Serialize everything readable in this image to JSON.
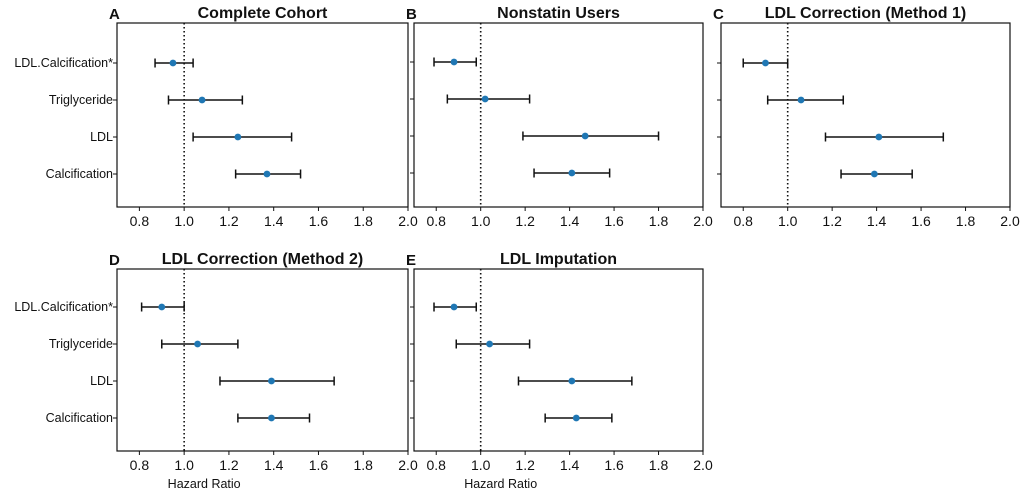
{
  "chart_data": [
    {
      "type": "forest",
      "letter": "A",
      "title": "Complete Cohort",
      "categories": [
        "LDL.Calcification*",
        "Triglyceride",
        "LDL",
        "Calcification"
      ],
      "show_category_labels": true,
      "estimate": [
        0.95,
        1.08,
        1.24,
        1.37
      ],
      "ci_low": [
        0.87,
        0.93,
        1.04,
        1.23
      ],
      "ci_high": [
        1.04,
        1.26,
        1.48,
        1.52
      ],
      "xlim": [
        0.7,
        2.0
      ],
      "xticks": [
        "0.8",
        "1.0",
        "1.2",
        "1.4",
        "1.6",
        "1.8",
        "2.0"
      ],
      "reference_line": 1.0,
      "xlabel": ""
    },
    {
      "type": "forest",
      "letter": "B",
      "title": "Nonstatin Users",
      "categories": [
        "LDL.Calcification*",
        "Triglyceride",
        "LDL",
        "Calcification"
      ],
      "show_category_labels": false,
      "estimate": [
        0.88,
        1.02,
        1.47,
        1.41
      ],
      "ci_low": [
        0.79,
        0.85,
        1.19,
        1.24
      ],
      "ci_high": [
        0.98,
        1.22,
        1.8,
        1.58
      ],
      "xlim": [
        0.7,
        2.0
      ],
      "xticks": [
        "0.8",
        "1.0",
        "1.2",
        "1.4",
        "1.6",
        "1.8",
        "2.0"
      ],
      "reference_line": 1.0,
      "xlabel": ""
    },
    {
      "type": "forest",
      "letter": "C",
      "title": "LDL Correction (Method 1)",
      "categories": [
        "LDL.Calcification*",
        "Triglyceride",
        "LDL",
        "Calcification"
      ],
      "show_category_labels": false,
      "estimate": [
        0.9,
        1.06,
        1.41,
        1.39
      ],
      "ci_low": [
        0.8,
        0.91,
        1.17,
        1.24
      ],
      "ci_high": [
        1.0,
        1.25,
        1.7,
        1.56
      ],
      "xlim": [
        0.7,
        2.0
      ],
      "xticks": [
        "0.8",
        "1.0",
        "1.2",
        "1.4",
        "1.6",
        "1.8",
        "2.0"
      ],
      "reference_line": 1.0,
      "xlabel": ""
    },
    {
      "type": "forest",
      "letter": "D",
      "title": "LDL Correction (Method 2)",
      "categories": [
        "LDL.Calcification*",
        "Triglyceride",
        "LDL",
        "Calcification"
      ],
      "show_category_labels": true,
      "estimate": [
        0.9,
        1.06,
        1.39,
        1.39
      ],
      "ci_low": [
        0.81,
        0.9,
        1.16,
        1.24
      ],
      "ci_high": [
        1.0,
        1.24,
        1.67,
        1.56
      ],
      "xlim": [
        0.7,
        2.0
      ],
      "xticks": [
        "0.8",
        "1.0",
        "1.2",
        "1.4",
        "1.6",
        "1.8",
        "2.0"
      ],
      "reference_line": 1.0,
      "xlabel": "Hazard Ratio"
    },
    {
      "type": "forest",
      "letter": "E",
      "title": "LDL Imputation",
      "categories": [
        "LDL.Calcification*",
        "Triglyceride",
        "LDL",
        "Calcification"
      ],
      "show_category_labels": false,
      "estimate": [
        0.88,
        1.04,
        1.41,
        1.43
      ],
      "ci_low": [
        0.79,
        0.89,
        1.17,
        1.29
      ],
      "ci_high": [
        0.98,
        1.22,
        1.68,
        1.59
      ],
      "xlim": [
        0.7,
        2.0
      ],
      "xticks": [
        "0.8",
        "1.0",
        "1.2",
        "1.4",
        "1.6",
        "1.8",
        "2.0"
      ],
      "reference_line": 1.0,
      "xlabel": "Hazard Ratio"
    }
  ],
  "colors": {
    "point": "#1f77b4",
    "errorbar": "#111111",
    "frame": "#111111",
    "reference": "#111111"
  }
}
